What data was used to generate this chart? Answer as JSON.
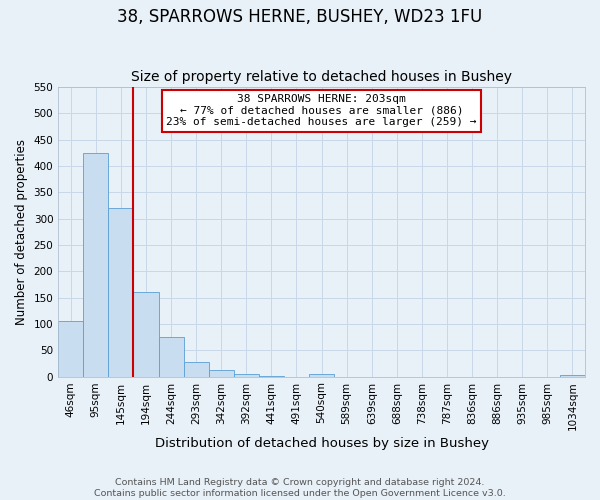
{
  "title": "38, SPARROWS HERNE, BUSHEY, WD23 1FU",
  "subtitle": "Size of property relative to detached houses in Bushey",
  "xlabel": "Distribution of detached houses by size in Bushey",
  "ylabel": "Number of detached properties",
  "bar_labels": [
    "46sqm",
    "95sqm",
    "145sqm",
    "194sqm",
    "244sqm",
    "293sqm",
    "342sqm",
    "392sqm",
    "441sqm",
    "491sqm",
    "540sqm",
    "589sqm",
    "639sqm",
    "688sqm",
    "738sqm",
    "787sqm",
    "836sqm",
    "886sqm",
    "935sqm",
    "985sqm",
    "1034sqm"
  ],
  "bar_values": [
    105,
    425,
    320,
    160,
    75,
    27,
    13,
    5,
    1,
    0,
    4,
    0,
    0,
    0,
    0,
    0,
    0,
    0,
    0,
    0,
    3
  ],
  "bar_color": "#c8ddf0",
  "bar_edge_color": "#5a9fd4",
  "vline_index": 3,
  "vline_color": "#cc0000",
  "ylim": [
    0,
    550
  ],
  "yticks": [
    0,
    50,
    100,
    150,
    200,
    250,
    300,
    350,
    400,
    450,
    500,
    550
  ],
  "annotation_title": "38 SPARROWS HERNE: 203sqm",
  "annotation_line1": "← 77% of detached houses are smaller (886)",
  "annotation_line2": "23% of semi-detached houses are larger (259) →",
  "annotation_box_color": "#ffffff",
  "annotation_box_edge": "#cc0000",
  "footnote1": "Contains HM Land Registry data © Crown copyright and database right 2024.",
  "footnote2": "Contains public sector information licensed under the Open Government Licence v3.0.",
  "title_fontsize": 12,
  "subtitle_fontsize": 10,
  "xlabel_fontsize": 9.5,
  "ylabel_fontsize": 8.5,
  "tick_fontsize": 7.5,
  "footnote_fontsize": 6.8,
  "grid_color": "#c8d8e8",
  "bg_color": "#e8f0f8"
}
